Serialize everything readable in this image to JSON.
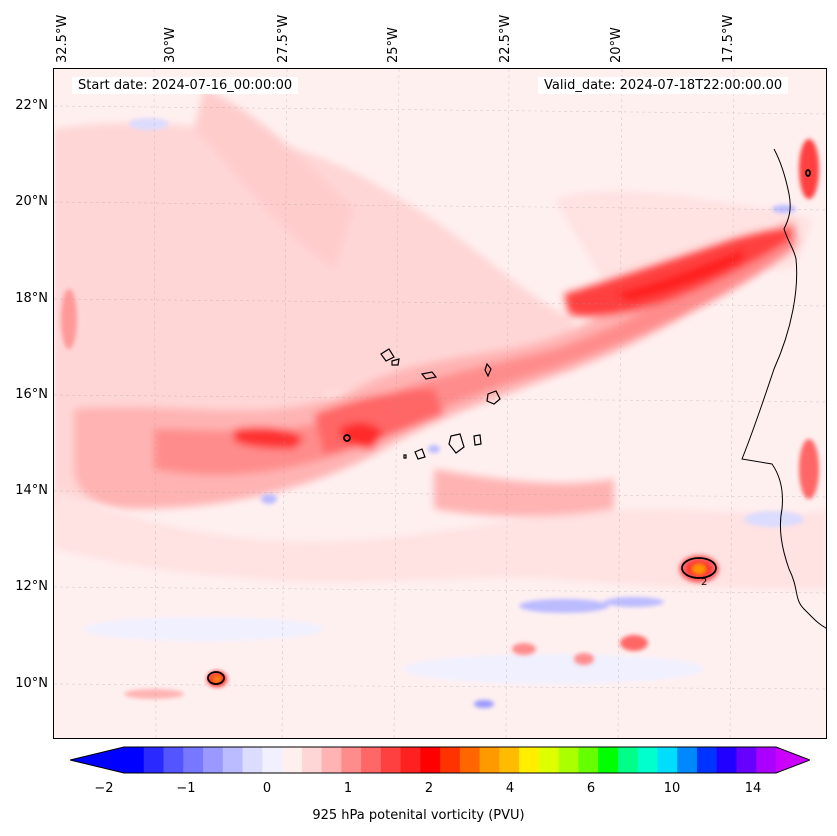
{
  "map": {
    "start_date": "Start date: 2024-07-16_00:00:00",
    "valid_date": "Valid_date: 2024-07-18T22:00:00.00",
    "lon_labels": [
      "32.5°W",
      "30°W",
      "27.5°W",
      "25°W",
      "22.5°W",
      "20°W",
      "17.5°W"
    ],
    "lat_labels": [
      "22°N",
      "20°N",
      "18°N",
      "16°N",
      "14°N",
      "12°N",
      "10°N"
    ],
    "extent": {
      "lon_min": -32.5,
      "lon_max": -15.3,
      "lat_min": 8.9,
      "lat_max": 22.8
    },
    "variable": "925 hPa potenital vorticity (PVU)",
    "contour_level_label": "2"
  },
  "colorbar": {
    "title": "925 hPa potenital vorticity (PVU)",
    "tick_labels": [
      "−2",
      "−1",
      "0",
      "1",
      "2",
      "4",
      "6",
      "10",
      "14"
    ],
    "colors": [
      "#0000ff",
      "#2a2aff",
      "#5555ff",
      "#7777ff",
      "#9999ff",
      "#bbbbff",
      "#dcdcff",
      "#f0f0ff",
      "#fff0f0",
      "#ffd6d6",
      "#ffb3b3",
      "#ff8c8c",
      "#ff6666",
      "#ff4040",
      "#ff2020",
      "#ff0000",
      "#ff3300",
      "#ff6600",
      "#ff9900",
      "#ffbb00",
      "#ffee00",
      "#ddff00",
      "#aaff00",
      "#66ff00",
      "#00ff00",
      "#00ff88",
      "#00ffcc",
      "#00ddff",
      "#0088ff",
      "#0033ff",
      "#2200ff",
      "#6600ff",
      "#aa00ff"
    ],
    "under_color": "#0000ff",
    "over_color": "#cc00ff"
  }
}
